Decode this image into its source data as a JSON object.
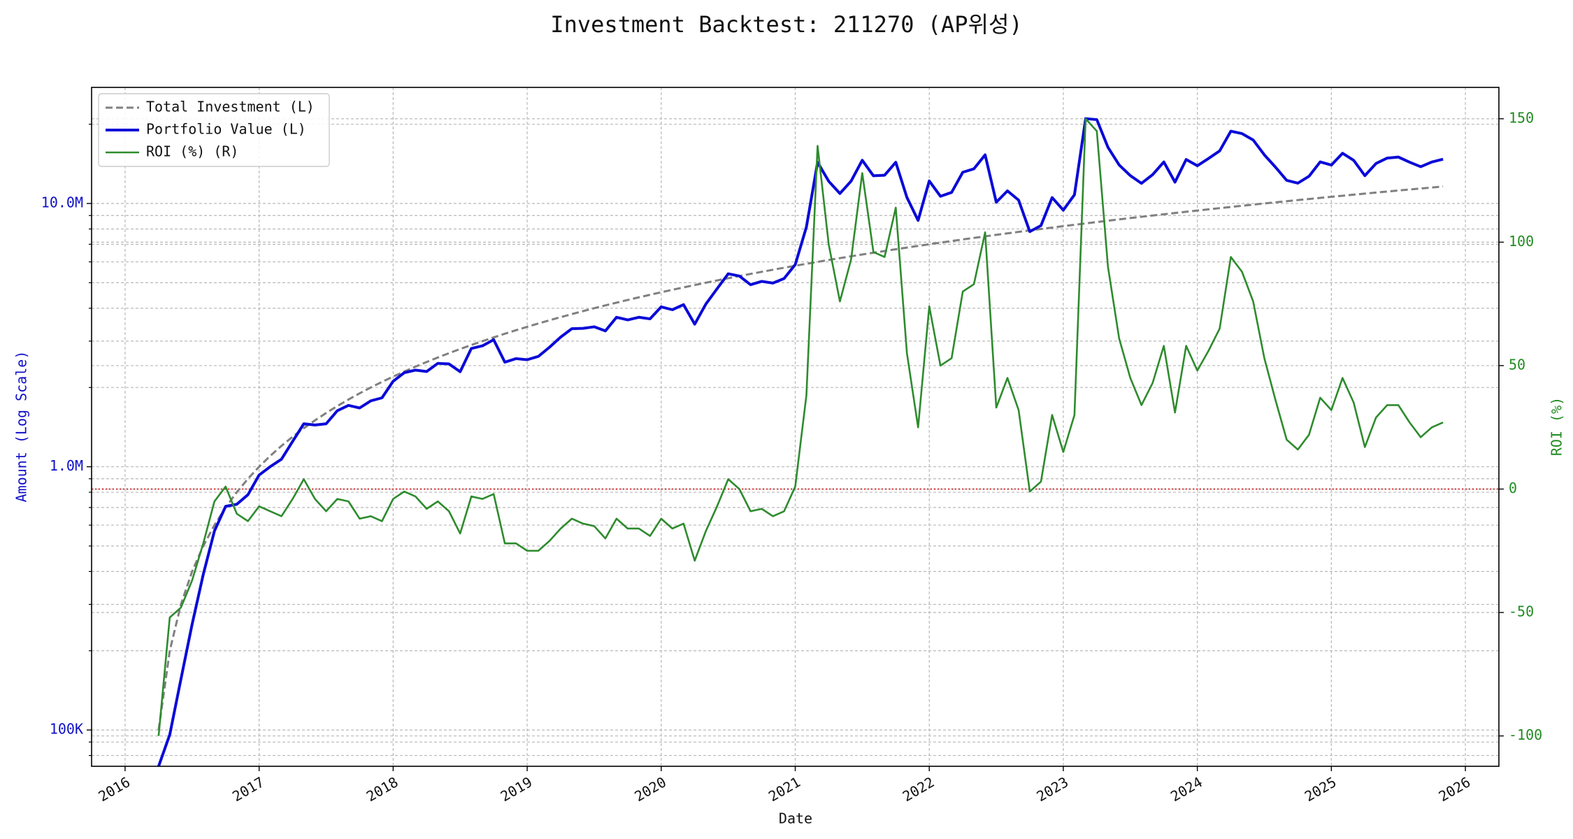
{
  "chart_data": {
    "type": "line",
    "title": "Investment Backtest: 211270 (AP위성)",
    "xlabel": "Date",
    "ylabel": "Amount (Log Scale)",
    "y2label": "ROI (%)",
    "ylog": true,
    "grid": true,
    "minor_grid": true,
    "legend": "upper left",
    "ylabel_color": "#1010c8",
    "y2label_color": "#228b22",
    "xlim": [
      "2015-10",
      "2026-04"
    ],
    "xticks": [
      "2016",
      "2017",
      "2018",
      "2019",
      "2020",
      "2021",
      "2022",
      "2023",
      "2024",
      "2025",
      "2026"
    ],
    "ylim": [
      72800,
      27600000
    ],
    "yticks": [
      {
        "value": 100000,
        "label": "100K"
      },
      {
        "value": 1000000,
        "label": "1.0M"
      },
      {
        "value": 10000000,
        "label": "10.0M"
      }
    ],
    "y2lim": [
      -112.3,
      162.7
    ],
    "y2ticks": [
      -100,
      -50,
      0,
      50,
      100,
      150
    ],
    "reference_line": {
      "axis": "y2",
      "value": 0,
      "color": "#d62020"
    },
    "x": [
      "2016-04",
      "2016-05",
      "2016-06",
      "2016-07",
      "2016-08",
      "2016-09",
      "2016-10",
      "2016-11",
      "2016-12",
      "2017-01",
      "2017-02",
      "2017-03",
      "2017-04",
      "2017-05",
      "2017-06",
      "2017-07",
      "2017-08",
      "2017-09",
      "2017-10",
      "2017-11",
      "2017-12",
      "2018-01",
      "2018-02",
      "2018-03",
      "2018-04",
      "2018-05",
      "2018-06",
      "2018-07",
      "2018-08",
      "2018-09",
      "2018-10",
      "2018-11",
      "2018-12",
      "2019-01",
      "2019-02",
      "2019-03",
      "2019-04",
      "2019-05",
      "2019-06",
      "2019-07",
      "2019-08",
      "2019-09",
      "2019-10",
      "2019-11",
      "2019-12",
      "2020-01",
      "2020-02",
      "2020-03",
      "2020-04",
      "2020-05",
      "2020-06",
      "2020-07",
      "2020-08",
      "2020-09",
      "2020-10",
      "2020-11",
      "2020-12",
      "2021-01",
      "2021-02",
      "2021-03",
      "2021-04",
      "2021-05",
      "2021-06",
      "2021-07",
      "2021-08",
      "2021-09",
      "2021-10",
      "2021-11",
      "2021-12",
      "2022-01",
      "2022-02",
      "2022-03",
      "2022-04",
      "2022-05",
      "2022-06",
      "2022-07",
      "2022-08",
      "2022-09",
      "2022-10",
      "2022-11",
      "2022-12",
      "2023-01",
      "2023-02",
      "2023-03",
      "2023-04",
      "2023-05",
      "2023-06",
      "2023-07",
      "2023-08",
      "2023-09",
      "2023-10",
      "2023-11",
      "2023-12",
      "2024-01",
      "2024-02",
      "2024-03",
      "2024-04",
      "2024-05",
      "2024-06",
      "2024-07",
      "2024-08",
      "2024-09",
      "2024-10",
      "2024-11",
      "2024-12",
      "2025-01",
      "2025-02",
      "2025-03",
      "2025-04",
      "2025-05",
      "2025-06",
      "2025-07",
      "2025-08",
      "2025-09",
      "2025-10",
      "2025-11"
    ],
    "series": [
      {
        "name": "Total Investment (L)",
        "color": "#808080",
        "style": "dashed",
        "width": 3,
        "values": [
          100000,
          200000,
          300000,
          400000,
          500000,
          600000,
          700000,
          800000,
          900000,
          1000000,
          1100000,
          1200000,
          1300000,
          1400000,
          1500000,
          1600000,
          1700000,
          1800000,
          1900000,
          2000000,
          2100000,
          2200000,
          2300000,
          2400000,
          2500000,
          2600000,
          2700000,
          2800000,
          2900000,
          3000000,
          3100000,
          3200000,
          3300000,
          3400000,
          3500000,
          3600000,
          3700000,
          3800000,
          3900000,
          4000000,
          4100000,
          4200000,
          4300000,
          4400000,
          4500000,
          4600000,
          4700000,
          4800000,
          4900000,
          5000000,
          5100000,
          5200000,
          5300000,
          5400000,
          5500000,
          5600000,
          5700000,
          5800000,
          5900000,
          6000000,
          6100000,
          6200000,
          6300000,
          6400000,
          6500000,
          6600000,
          6700000,
          6800000,
          6900000,
          7000000,
          7100000,
          7200000,
          7300000,
          7400000,
          7500000,
          7600000,
          7700000,
          7800000,
          7900000,
          8000000,
          8100000,
          8200000,
          8300000,
          8400000,
          8500000,
          8600000,
          8700000,
          8800000,
          8900000,
          9000000,
          9100000,
          9200000,
          9300000,
          9400000,
          9500000,
          9600000,
          9700000,
          9800000,
          9900000,
          10000000,
          10100000,
          10200000,
          10300000,
          10400000,
          10500000,
          10600000,
          10700000,
          10800000,
          10900000,
          11000000,
          11100000,
          11200000,
          11300000,
          11400000,
          11500000,
          11600000
        ]
      },
      {
        "name": "Portfolio Value (L)",
        "color": "#0a0ad8",
        "style": "solid",
        "width": 4,
        "values": [
          0,
          96000,
          156000,
          252000,
          390000,
          570000,
          707000,
          720000,
          783000,
          930000,
          1001000,
          1068000,
          1248000,
          1456000,
          1440000,
          1456000,
          1632000,
          1710000,
          1672000,
          1780000,
          1827000,
          2112000,
          2277000,
          2328000,
          2300000,
          2470000,
          2457000,
          2296000,
          2813000,
          2880000,
          3038000,
          2496000,
          2574000,
          2550000,
          2625000,
          2844000,
          3108000,
          3344000,
          3354000,
          3400000,
          3280000,
          3696000,
          3612000,
          3696000,
          3645000,
          4048000,
          3948000,
          4128000,
          3479000,
          4150000,
          4743000,
          5408000,
          5300000,
          4914000,
          5060000,
          4984000,
          5187000,
          5858000,
          8142000,
          14340000,
          12139000,
          10912000,
          12159000,
          14592000,
          12740000,
          12804000,
          14338000,
          10540000,
          8625000,
          12180000,
          10650000,
          11016000,
          13140000,
          13542000,
          15300000,
          10108000,
          11165000,
          10296000,
          7821000,
          8240000,
          10530000,
          9430000,
          10790000,
          21000000,
          20825000,
          16340000,
          14007000,
          12760000,
          11926000,
          12870000,
          14378000,
          12052000,
          14694000,
          13912000,
          14820000,
          15840000,
          18818000,
          18424000,
          17424000,
          15300000,
          13736000,
          12240000,
          11948000,
          12688000,
          14385000,
          13992000,
          15515000,
          14580000,
          12753000,
          14190000,
          14874000,
          15008000,
          14351000,
          13794000,
          14375000,
          14732000
        ]
      },
      {
        "name": "ROI (%) (R)",
        "color": "#2e8b2e",
        "style": "solid",
        "width": 2.6,
        "axis": "y2",
        "values": [
          -100,
          -52,
          -48,
          -37,
          -22,
          -5,
          1,
          -10,
          -13,
          -7,
          -9,
          -11,
          -4,
          4,
          -4,
          -9,
          -4,
          -5,
          -12,
          -11,
          -13,
          -4,
          -1,
          -3,
          -8,
          -5,
          -9,
          -18,
          -3,
          -4,
          -2,
          -22,
          -22,
          -25,
          -25,
          -21,
          -16,
          -12,
          -14,
          -15,
          -20,
          -12,
          -16,
          -16,
          -19,
          -12,
          -16,
          -14,
          -29,
          -17,
          -7,
          4,
          0,
          -9,
          -8,
          -11,
          -9,
          1,
          38,
          139,
          99,
          76,
          93,
          128,
          96,
          94,
          114,
          55,
          25,
          74,
          50,
          53,
          80,
          83,
          104,
          33,
          45,
          32,
          -1,
          3,
          30,
          15,
          30,
          150,
          145,
          90,
          61,
          45,
          34,
          43,
          58,
          31,
          58,
          48,
          56,
          65,
          94,
          88,
          76,
          53,
          36,
          20,
          16,
          22,
          37,
          32,
          45,
          35,
          17,
          29,
          34,
          34,
          27,
          21,
          25,
          27
        ]
      }
    ]
  }
}
